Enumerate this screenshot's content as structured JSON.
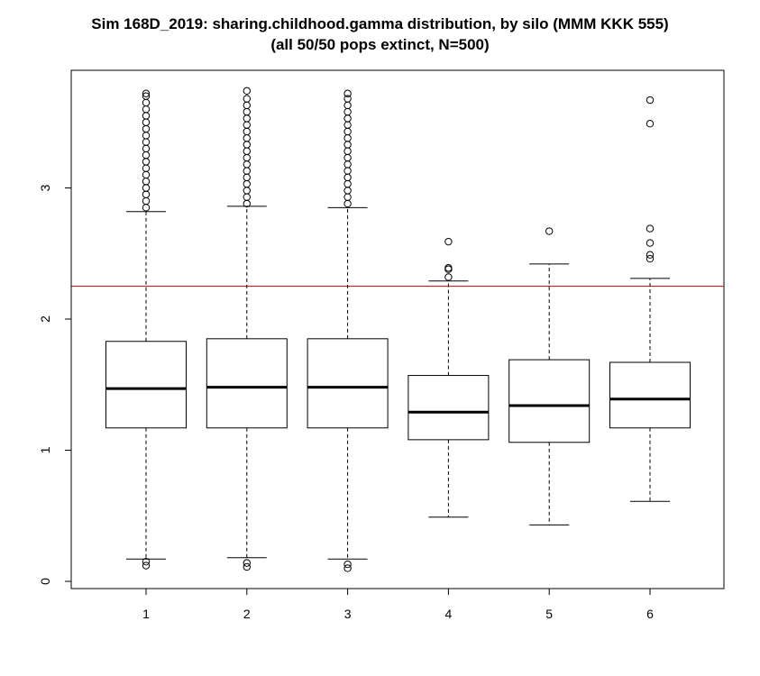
{
  "chart_data": {
    "type": "boxplot",
    "title": "Sim 168D_2019: sharing.childhood.gamma distribution, by silo (MMM KKK 555)",
    "subtitle": "(all 50/50 pops extinct, N=500)",
    "xlabel": "",
    "ylabel": "",
    "categories": [
      "1",
      "2",
      "3",
      "4",
      "5",
      "6"
    ],
    "y_ticks": [
      0,
      1,
      2,
      3
    ],
    "ylim": [
      -0.05,
      3.9
    ],
    "reference_line": {
      "y": 2.25,
      "color": "#cc0000"
    },
    "boxes": [
      {
        "category": "1",
        "whisker_low": 0.17,
        "q1": 1.17,
        "median": 1.47,
        "q3": 1.83,
        "whisker_high": 2.82,
        "outliers_low": [
          0.12,
          0.15
        ],
        "outliers_high": [
          2.85,
          2.9,
          2.95,
          3.0,
          3.05,
          3.1,
          3.15,
          3.2,
          3.25,
          3.3,
          3.35,
          3.4,
          3.45,
          3.5,
          3.55,
          3.6,
          3.65,
          3.7,
          3.72
        ]
      },
      {
        "category": "2",
        "whisker_low": 0.18,
        "q1": 1.17,
        "median": 1.48,
        "q3": 1.85,
        "whisker_high": 2.86,
        "outliers_low": [
          0.11,
          0.14
        ],
        "outliers_high": [
          2.88,
          2.93,
          2.98,
          3.03,
          3.08,
          3.13,
          3.18,
          3.23,
          3.28,
          3.33,
          3.38,
          3.43,
          3.48,
          3.53,
          3.58,
          3.63,
          3.68,
          3.74
        ]
      },
      {
        "category": "3",
        "whisker_low": 0.17,
        "q1": 1.17,
        "median": 1.48,
        "q3": 1.85,
        "whisker_high": 2.85,
        "outliers_low": [
          0.1,
          0.13
        ],
        "outliers_high": [
          2.88,
          2.93,
          2.98,
          3.03,
          3.08,
          3.13,
          3.18,
          3.23,
          3.28,
          3.33,
          3.38,
          3.43,
          3.48,
          3.53,
          3.58,
          3.63,
          3.68,
          3.72
        ]
      },
      {
        "category": "4",
        "whisker_low": 0.49,
        "q1": 1.08,
        "median": 1.29,
        "q3": 1.57,
        "whisker_high": 2.29,
        "outliers_low": [],
        "outliers_high": [
          2.32,
          2.38,
          2.39,
          2.59
        ]
      },
      {
        "category": "5",
        "whisker_low": 0.43,
        "q1": 1.06,
        "median": 1.34,
        "q3": 1.69,
        "whisker_high": 2.42,
        "outliers_low": [],
        "outliers_high": [
          2.67
        ]
      },
      {
        "category": "6",
        "whisker_low": 0.61,
        "q1": 1.17,
        "median": 1.39,
        "q3": 1.67,
        "whisker_high": 2.31,
        "outliers_low": [],
        "outliers_high": [
          2.46,
          2.49,
          2.58,
          2.69,
          3.49,
          3.67
        ]
      }
    ]
  }
}
